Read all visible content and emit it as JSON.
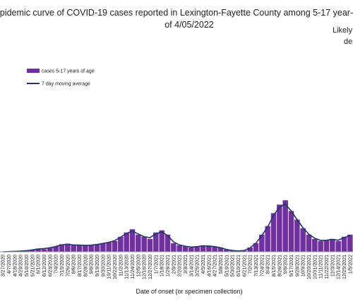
{
  "chart_data": {
    "type": "bar",
    "title": "pidemic curve of COVID-19 cases reported in Lexington-Fayette County among 5-17 year-",
    "subtitle": "of 4/05/2022",
    "annotations": [
      "Likely",
      "de"
    ],
    "xlabel": "Date of onset (or specimen collection)",
    "legend": "upper left",
    "categories": [
      "3/27/2020",
      "4/7/2020",
      "4/18/2020",
      "4/29/2020",
      "5/10/2020",
      "5/21/2020",
      "6/1/2020",
      "6/12/2020",
      "6/23/2020",
      "7/4/2020",
      "7/15/2020",
      "7/26/2020",
      "8/6/2020",
      "8/17/2020",
      "8/28/2020",
      "9/8/2020",
      "9/19/2020",
      "9/30/2020",
      "10/11/2020",
      "10/22/2020",
      "11/2/2020",
      "11/13/2020",
      "11/24/2020",
      "12/5/2020",
      "12/16/2020",
      "12/27/2020",
      "1/7/2021",
      "1/18/2021",
      "1/29/2021",
      "2/9/2021",
      "2/20/2021",
      "3/3/2021",
      "3/14/2021",
      "3/25/2021",
      "4/5/2021",
      "4/16/2021",
      "4/27/2021",
      "5/8/2021",
      "5/19/2021",
      "5/30/2021",
      "6/10/2021",
      "6/21/2021",
      "7/2/2021",
      "7/13/2021",
      "7/24/2021",
      "8/4/2021",
      "8/15/2021",
      "8/26/2021",
      "9/6/2021",
      "9/17/2021",
      "9/28/2021",
      "10/9/2021",
      "10/20/2021",
      "10/31/2021",
      "11/11/2021",
      "11/22/2021",
      "12/3/2021",
      "12/14/2021",
      "12/25/2021",
      "1/5/2022"
    ],
    "series": [
      {
        "name": "cases 5-17 years of age",
        "type": "bar",
        "color": "#7030a0",
        "values": [
          0,
          0,
          0.2,
          0.3,
          0.5,
          1,
          1.5,
          1.2,
          2,
          2.5,
          3.5,
          3.8,
          3,
          3.2,
          2.8,
          3,
          3.5,
          4,
          4.5,
          5,
          7,
          9,
          10.5,
          8,
          7,
          6,
          9,
          10,
          8,
          4,
          3,
          2.5,
          2,
          2.5,
          3,
          2.8,
          2.5,
          2,
          1,
          0.5,
          0.3,
          0.5,
          2,
          4,
          8,
          12,
          18,
          22,
          24,
          19,
          15,
          11,
          8,
          6,
          5,
          5.5,
          6,
          5,
          7,
          8
        ]
      },
      {
        "name": "7 day moving average",
        "type": "line",
        "color": "#1f3864",
        "values": [
          0,
          0.1,
          0.2,
          0.3,
          0.5,
          0.9,
          1.3,
          1.5,
          1.9,
          2.5,
          3.2,
          3.5,
          3.2,
          3.1,
          3,
          3.1,
          3.4,
          3.9,
          4.4,
          5.2,
          6.8,
          8.6,
          9.6,
          8.3,
          7,
          6.6,
          8.4,
          9.2,
          7.6,
          4.6,
          3.2,
          2.6,
          2.2,
          2.4,
          2.8,
          2.7,
          2.4,
          1.9,
          1.1,
          0.6,
          0.4,
          0.6,
          1.8,
          4,
          7.6,
          11.6,
          17,
          20.8,
          22.2,
          19,
          15,
          11.2,
          8.2,
          6.3,
          5.3,
          5.4,
          5.8,
          5.4,
          6.6,
          7.6
        ]
      }
    ],
    "ylim": [
      0,
      30
    ]
  }
}
